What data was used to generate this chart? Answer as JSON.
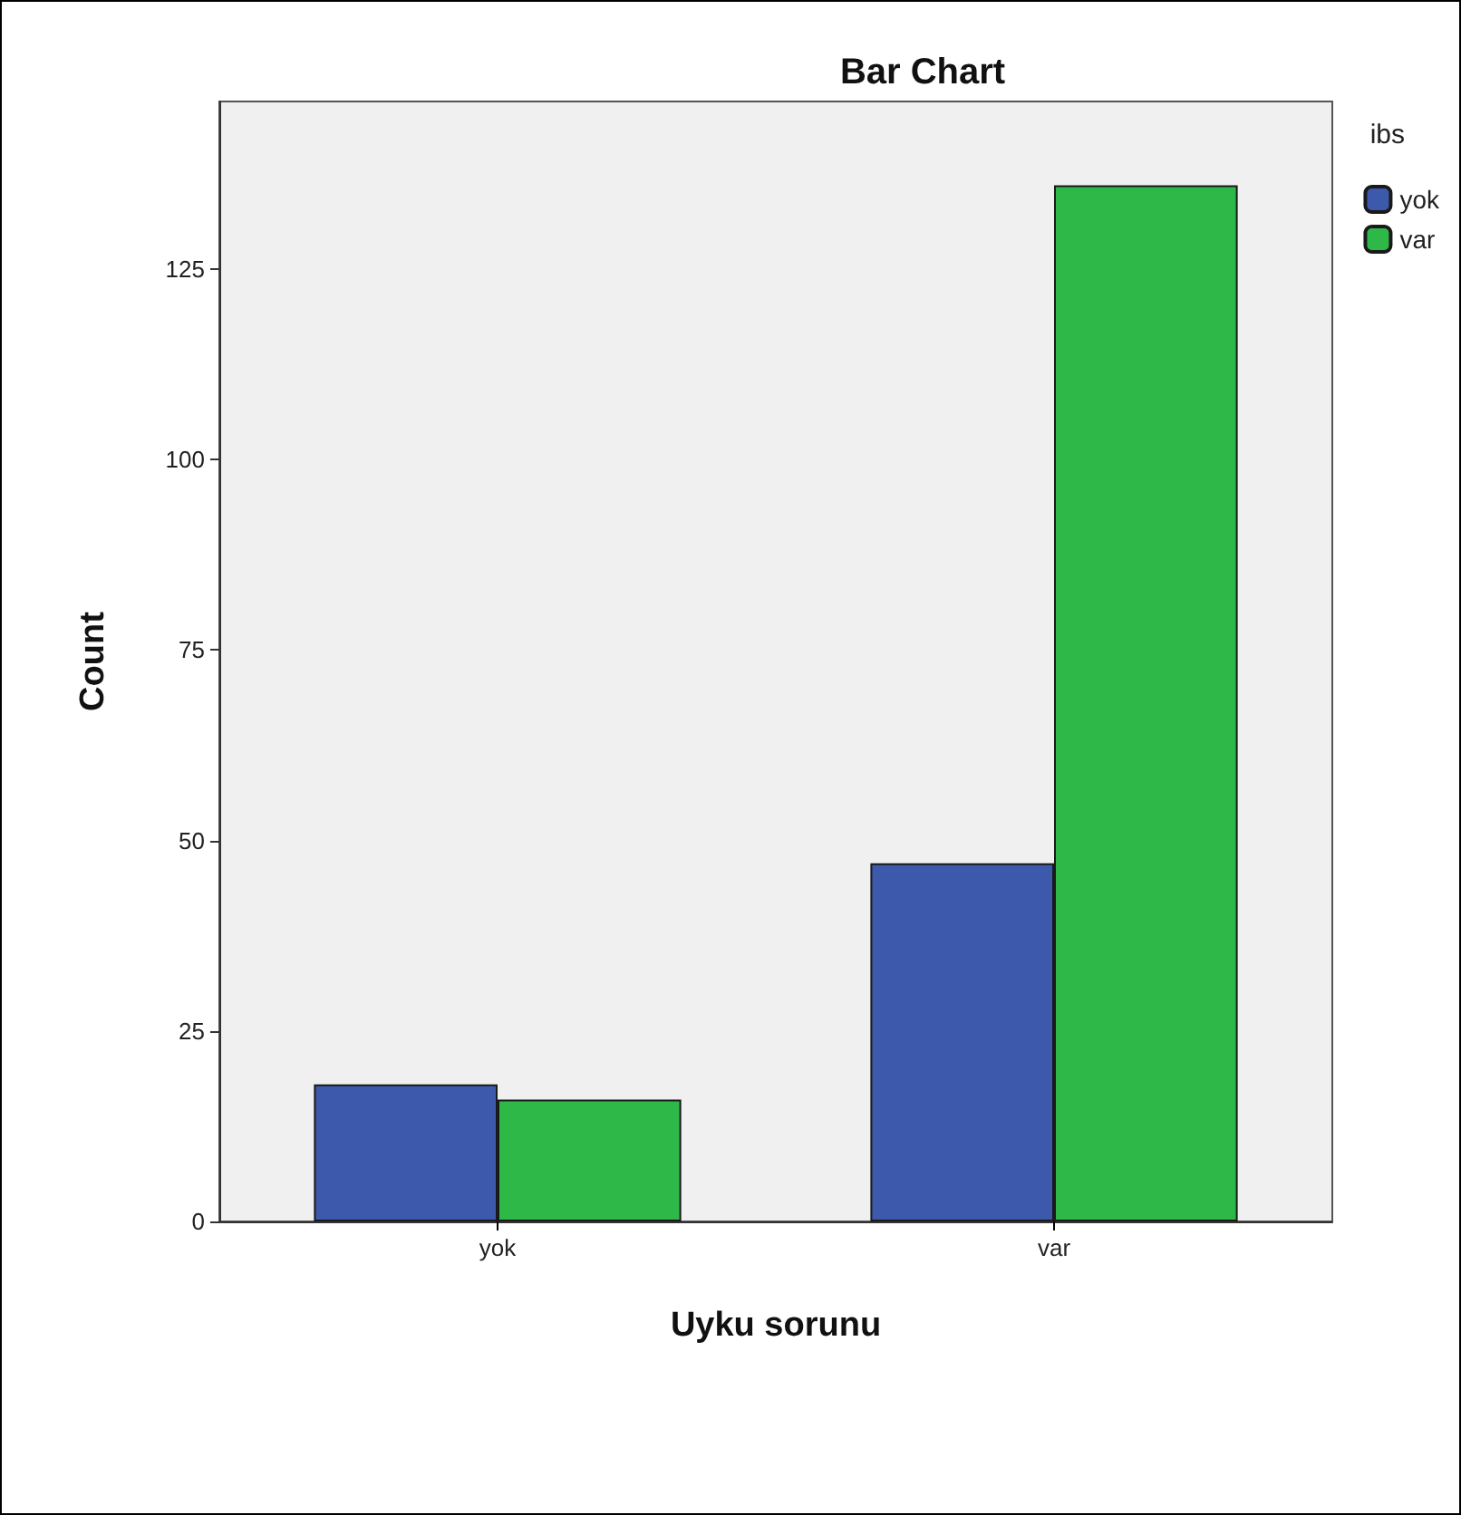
{
  "chart_data": {
    "type": "bar",
    "title": "Bar Chart",
    "xlabel": "Uyku sorunu",
    "ylabel": "Count",
    "legend_title": "ibs",
    "categories": [
      "yok",
      "var"
    ],
    "series": [
      {
        "name": "yok",
        "color": "#3d59ab",
        "values": [
          18,
          47
        ]
      },
      {
        "name": "var",
        "color": "#2eb848",
        "values": [
          16,
          136
        ]
      }
    ],
    "ylim": [
      0,
      147
    ],
    "yticks": [
      0,
      25,
      50,
      75,
      100,
      125
    ],
    "grid": false,
    "legend": "right"
  }
}
